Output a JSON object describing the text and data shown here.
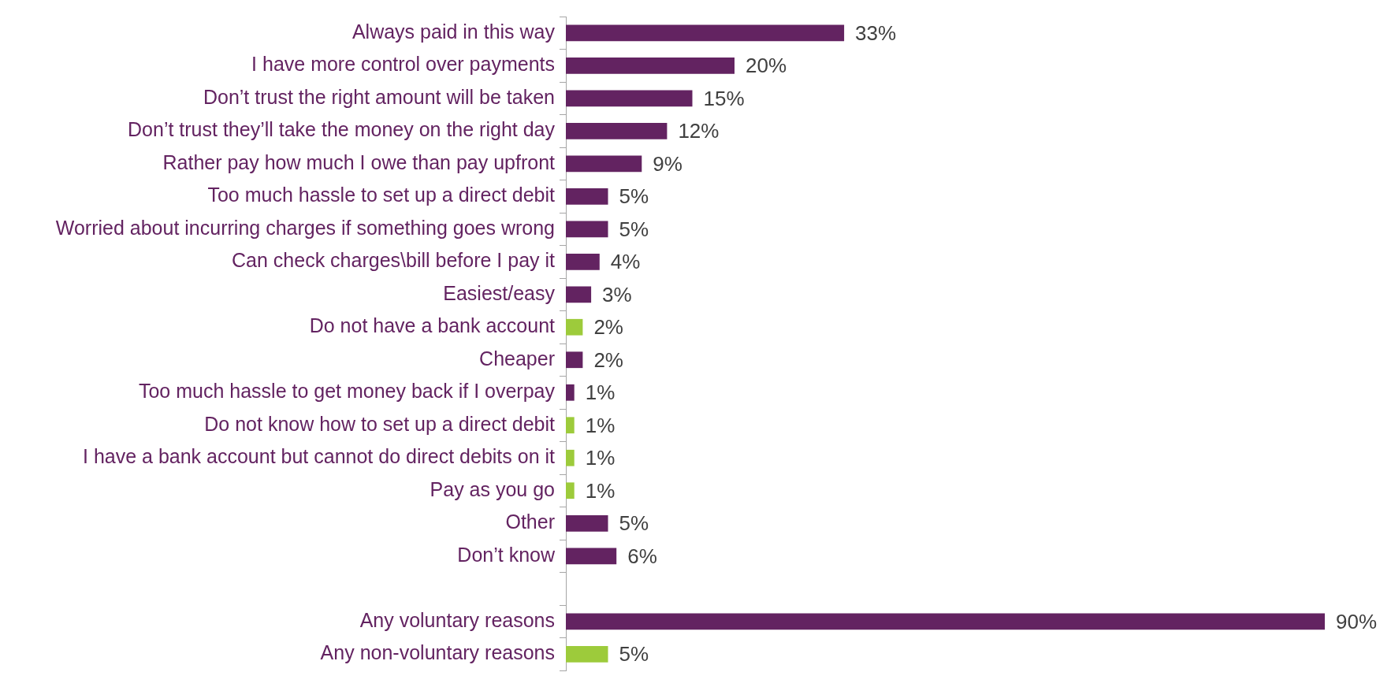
{
  "chart_data": {
    "type": "bar",
    "orientation": "horizontal",
    "categories": [
      "Always paid in this way",
      "I have more control over payments",
      "Don’t trust the right amount will be taken",
      "Don’t trust they’ll take the money on the right day",
      "Rather pay how much I owe than pay upfront",
      "Too much hassle to set up a direct debit",
      "Worried about incurring charges if something goes wrong",
      "Can check charges\\bill before I pay it",
      "Easiest/easy",
      "Do not have a bank account",
      "Cheaper",
      "Too much hassle to get money back if I overpay",
      "Do not know how to set up a direct debit",
      "I have a bank account but cannot do direct debits on it",
      "Pay as you go",
      "Other",
      "Don’t know",
      null,
      "Any voluntary reasons",
      "Any non-voluntary reasons"
    ],
    "values": [
      33,
      20,
      15,
      12,
      9,
      5,
      5,
      4,
      3,
      2,
      2,
      1,
      1,
      1,
      1,
      5,
      6,
      null,
      90,
      5
    ],
    "colors": [
      "#632361",
      "#632361",
      "#632361",
      "#632361",
      "#632361",
      "#632361",
      "#632361",
      "#632361",
      "#632361",
      "#9dcb3b",
      "#632361",
      "#632361",
      "#9dcb3b",
      "#9dcb3b",
      "#9dcb3b",
      "#632361",
      "#632361",
      "#632361",
      "#632361",
      "#9dcb3b"
    ],
    "value_labels": [
      "33%",
      "20%",
      "15%",
      "12%",
      "9%",
      "5%",
      "5%",
      "4%",
      "3%",
      "2%",
      "2%",
      "1%",
      "1%",
      "1%",
      "1%",
      "5%",
      "6%",
      null,
      "90%",
      "5%"
    ]
  }
}
